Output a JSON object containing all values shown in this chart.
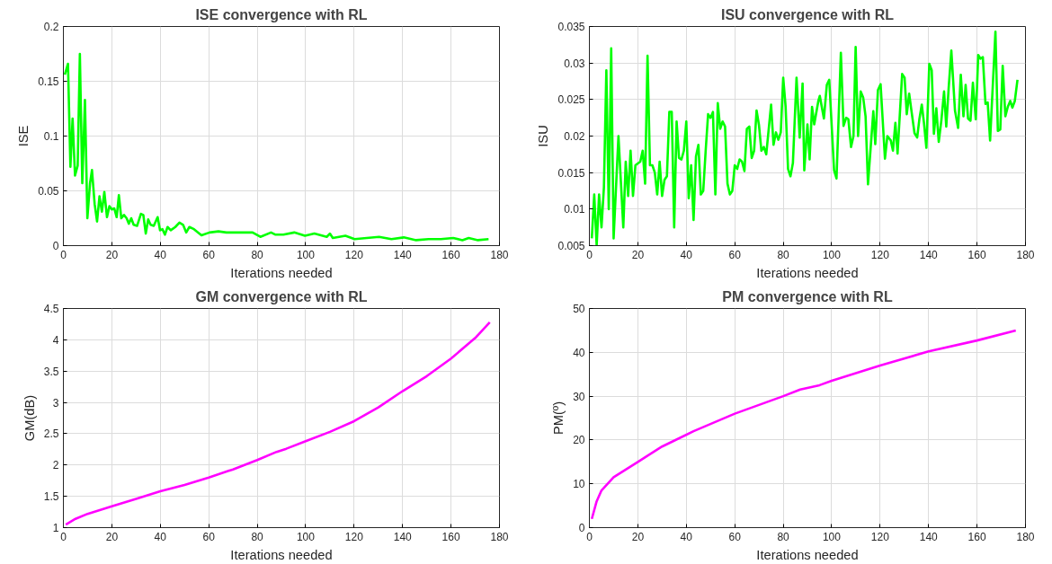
{
  "chart_data": [
    {
      "type": "line",
      "title": "ISE convergence with RL",
      "xlabel": "Iterations needed",
      "ylabel": "ISE",
      "xlim": [
        0,
        180
      ],
      "ylim": [
        0,
        0.2
      ],
      "xticks": [
        0,
        20,
        40,
        60,
        80,
        100,
        120,
        140,
        160,
        180
      ],
      "yticks": [
        0,
        0.05,
        0.1,
        0.15,
        0.2
      ],
      "grid": true,
      "series": [
        {
          "color": "#00ff00",
          "x": [
            0.6,
            1.9,
            2.9,
            3.8,
            4.8,
            5.9,
            6.8,
            7.8,
            8.9,
            9.9,
            11,
            11.8,
            12.9,
            13.9,
            14.9,
            15.9,
            16.9,
            18,
            19,
            20,
            21,
            22,
            22.9,
            23.9,
            25,
            26.1,
            27,
            28,
            29,
            30.4,
            32,
            33,
            34,
            35,
            36,
            37.3,
            38.9,
            39.9,
            40.9,
            41.9,
            43,
            44.3,
            46.2,
            47.9,
            49.4,
            50.7,
            52,
            53.9,
            57,
            60.3,
            64,
            67.3,
            70.4,
            74.3,
            78.1,
            81.3,
            85.7,
            87.6,
            90.8,
            95.3,
            99.7,
            103.6,
            108.7,
            110,
            111.2,
            116.4,
            120.2,
            125.2,
            130.3,
            135.4,
            140.5,
            145.6,
            150.7,
            155.8,
            160.9,
            164.7,
            167.3,
            171.1,
            175.5
          ],
          "values": [
            0.156,
            0.166,
            0.072,
            0.116,
            0.064,
            0.073,
            0.175,
            0.057,
            0.133,
            0.025,
            0.057,
            0.069,
            0.038,
            0.022,
            0.045,
            0.031,
            0.049,
            0.026,
            0.036,
            0.033,
            0.034,
            0.026,
            0.046,
            0.025,
            0.028,
            0.025,
            0.02,
            0.025,
            0.019,
            0.018,
            0.029,
            0.028,
            0.011,
            0.024,
            0.019,
            0.018,
            0.026,
            0.014,
            0.015,
            0.01,
            0.017,
            0.014,
            0.017,
            0.021,
            0.019,
            0.012,
            0.017,
            0.015,
            0.0095,
            0.012,
            0.013,
            0.012,
            0.012,
            0.012,
            0.012,
            0.008,
            0.012,
            0.01,
            0.01,
            0.012,
            0.009,
            0.011,
            0.008,
            0.011,
            0.007,
            0.009,
            0.006,
            0.007,
            0.008,
            0.006,
            0.0075,
            0.005,
            0.006,
            0.006,
            0.007,
            0.005,
            0.007,
            0.005,
            0.006
          ]
        }
      ]
    },
    {
      "type": "line",
      "title": "ISU convergence with RL",
      "xlabel": "Iterations needed",
      "ylabel": "ISU",
      "xlim": [
        0,
        180
      ],
      "ylim": [
        0.005,
        0.035
      ],
      "xticks": [
        0,
        20,
        40,
        60,
        80,
        100,
        120,
        140,
        160,
        180
      ],
      "yticks": [
        0.005,
        0.01,
        0.015,
        0.02,
        0.025,
        0.03,
        0.035
      ],
      "grid": true,
      "series": [
        {
          "color": "#00ff00",
          "x": [
            1,
            2,
            3,
            4,
            5,
            6,
            7,
            8,
            9,
            10,
            12,
            14,
            15,
            16,
            17,
            18,
            19,
            21,
            22,
            23,
            24,
            25,
            26,
            27,
            28,
            29,
            30,
            31,
            32,
            33,
            34,
            35,
            36,
            37,
            38,
            39,
            40,
            41,
            42,
            43,
            44,
            45,
            46,
            47,
            48,
            49,
            50,
            51,
            52,
            53,
            54,
            55,
            56,
            57,
            58,
            59,
            60,
            61,
            62,
            63,
            64,
            65,
            66,
            67,
            68,
            69,
            70,
            71,
            72,
            73,
            75,
            76,
            77,
            78,
            79,
            80,
            81,
            82,
            83,
            84,
            85.5,
            86.8,
            88,
            88.7,
            90,
            90.9,
            91.9,
            92.8,
            94.5,
            95.1,
            96.8,
            98,
            99,
            101,
            102,
            103.8,
            104.9,
            106,
            106.9,
            108,
            109,
            109.9,
            110.9,
            112,
            113,
            114,
            115,
            117.2,
            118,
            119.1,
            120.2,
            122,
            123,
            124.4,
            125.3,
            126.3,
            127.2,
            129.1,
            130.1,
            131,
            132,
            133,
            134.2,
            135.3,
            136.2,
            137.2,
            138.1,
            139.1,
            140.3,
            141.3,
            142.2,
            143.2,
            144.2,
            145.3,
            146.4,
            147.3,
            148.3,
            149.4,
            150.9,
            152.2,
            153.3,
            154.4,
            155.3,
            156.3,
            157.3,
            158.3,
            159.5,
            160.5,
            161.4,
            162.4,
            163.5,
            164.4,
            165.4,
            167.6,
            168.6,
            169.6,
            170.6,
            171.7,
            172.7,
            173.7,
            174.6,
            175.6,
            176.7
          ],
          "values": [
            0.006,
            0.012,
            0.005,
            0.012,
            0.0075,
            0.013,
            0.029,
            0.01,
            0.032,
            0.006,
            0.02,
            0.0075,
            0.0165,
            0.0118,
            0.018,
            0.0118,
            0.016,
            0.0165,
            0.018,
            0.0135,
            0.031,
            0.016,
            0.016,
            0.015,
            0.012,
            0.0165,
            0.0118,
            0.014,
            0.0145,
            0.0233,
            0.0233,
            0.0075,
            0.022,
            0.017,
            0.0168,
            0.018,
            0.022,
            0.0115,
            0.016,
            0.0085,
            0.0172,
            0.0188,
            0.012,
            0.0125,
            0.018,
            0.023,
            0.0225,
            0.0233,
            0.012,
            0.0245,
            0.021,
            0.022,
            0.0213,
            0.0135,
            0.012,
            0.0125,
            0.016,
            0.0155,
            0.0168,
            0.0165,
            0.0152,
            0.021,
            0.0213,
            0.017,
            0.018,
            0.0235,
            0.0215,
            0.018,
            0.0185,
            0.0175,
            0.0243,
            0.0188,
            0.0205,
            0.0195,
            0.0205,
            0.028,
            0.024,
            0.0155,
            0.0145,
            0.0163,
            0.028,
            0.0198,
            0.0272,
            0.0153,
            0.0216,
            0.0168,
            0.024,
            0.0216,
            0.0248,
            0.0255,
            0.0224,
            0.027,
            0.0277,
            0.0153,
            0.0142,
            0.0314,
            0.0214,
            0.0225,
            0.0223,
            0.0185,
            0.02,
            0.0322,
            0.02,
            0.0261,
            0.0253,
            0.0227,
            0.0134,
            0.0234,
            0.0189,
            0.0263,
            0.0271,
            0.0169,
            0.02,
            0.0194,
            0.018,
            0.0218,
            0.0176,
            0.0285,
            0.028,
            0.023,
            0.0258,
            0.0233,
            0.0204,
            0.0198,
            0.0223,
            0.0243,
            0.0218,
            0.0184,
            0.0299,
            0.029,
            0.0203,
            0.0238,
            0.0192,
            0.0222,
            0.0261,
            0.0213,
            0.0266,
            0.0317,
            0.0235,
            0.0211,
            0.0284,
            0.0227,
            0.027,
            0.0224,
            0.0221,
            0.0273,
            0.0223,
            0.0311,
            0.0306,
            0.0308,
            0.0244,
            0.0246,
            0.0194,
            0.0343,
            0.0207,
            0.0209,
            0.0296,
            0.0227,
            0.024,
            0.0248,
            0.0239,
            0.0248,
            0.0277
          ]
        }
      ]
    },
    {
      "type": "line",
      "title": "GM convergence with RL",
      "xlabel": "Iterations needed",
      "ylabel": "GM(dB)",
      "xlim": [
        0,
        180
      ],
      "ylim": [
        1,
        4.5
      ],
      "xticks": [
        0,
        20,
        40,
        60,
        80,
        100,
        120,
        140,
        160,
        180
      ],
      "yticks": [
        1,
        1.5,
        2,
        2.5,
        3,
        3.5,
        4,
        4.5
      ],
      "grid": true,
      "series": [
        {
          "color": "#ff00ff",
          "x": [
            1,
            5,
            10,
            20,
            30,
            40,
            50,
            60,
            70,
            80,
            88,
            92,
            100,
            110,
            120,
            130,
            140,
            150,
            160,
            170,
            176
          ],
          "values": [
            1.05,
            1.14,
            1.22,
            1.34,
            1.46,
            1.58,
            1.68,
            1.8,
            1.93,
            2.08,
            2.21,
            2.26,
            2.38,
            2.53,
            2.7,
            2.92,
            3.18,
            3.42,
            3.7,
            4.03,
            4.28
          ]
        }
      ]
    },
    {
      "type": "line",
      "title": "PM convergence with RL",
      "xlabel": "Iterations needed",
      "ylabel": "PM(º)",
      "xlim": [
        0,
        180
      ],
      "ylim": [
        0,
        50
      ],
      "xticks": [
        0,
        20,
        40,
        60,
        80,
        100,
        120,
        140,
        160,
        180
      ],
      "yticks": [
        0,
        10,
        20,
        30,
        40,
        50
      ],
      "grid": true,
      "series": [
        {
          "color": "#ff00ff",
          "x": [
            1,
            3,
            5,
            10,
            20,
            30,
            43,
            60,
            80,
            87,
            95,
            100,
            120,
            140,
            160,
            176
          ],
          "values": [
            2,
            6,
            8.5,
            11.5,
            15,
            18.5,
            22,
            26,
            30,
            31.5,
            32.5,
            33.5,
            37,
            40.2,
            42.7,
            45
          ]
        }
      ]
    }
  ]
}
